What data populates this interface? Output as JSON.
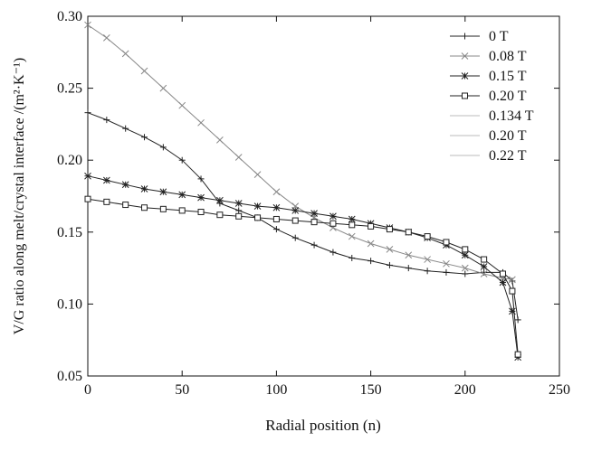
{
  "chart_data": {
    "type": "line",
    "xlabel": "Radial position (n)",
    "ylabel": "V/G ratio along melt/crystal interface /(m²·K⁻¹)",
    "xlim": [
      0,
      250
    ],
    "ylim": [
      0.05,
      0.3
    ],
    "x_ticks": [
      "0",
      "50",
      "100",
      "150",
      "200",
      "250"
    ],
    "y_ticks": [
      "0.05",
      "0.10",
      "0.15",
      "0.20",
      "0.25",
      "0.30"
    ],
    "grid": false,
    "legend_position": "top-right",
    "series": [
      {
        "name": "0 T",
        "marker": "plus",
        "color": "#222222",
        "x": [
          0,
          10,
          20,
          30,
          40,
          50,
          60,
          70,
          80,
          90,
          100,
          110,
          120,
          130,
          140,
          150,
          160,
          170,
          180,
          190,
          200,
          210,
          220,
          225,
          228
        ],
        "y": [
          0.233,
          0.228,
          0.222,
          0.216,
          0.209,
          0.2,
          0.187,
          0.17,
          0.165,
          0.16,
          0.152,
          0.146,
          0.141,
          0.136,
          0.132,
          0.13,
          0.127,
          0.125,
          0.123,
          0.122,
          0.121,
          0.122,
          0.122,
          0.116,
          0.089
        ]
      },
      {
        "name": "0.08 T",
        "marker": "cross",
        "color": "#888888",
        "x": [
          0,
          10,
          20,
          30,
          40,
          50,
          60,
          70,
          80,
          90,
          100,
          110,
          120,
          130,
          140,
          150,
          160,
          170,
          180,
          190,
          200,
          210,
          220,
          225
        ],
        "y": [
          0.294,
          0.285,
          0.274,
          0.262,
          0.25,
          0.238,
          0.226,
          0.214,
          0.202,
          0.19,
          0.178,
          0.168,
          0.16,
          0.153,
          0.147,
          0.142,
          0.138,
          0.134,
          0.131,
          0.128,
          0.125,
          0.121,
          0.118,
          0.117
        ]
      },
      {
        "name": "0.15 T",
        "marker": "asterisk",
        "color": "#222222",
        "x": [
          0,
          10,
          20,
          30,
          40,
          50,
          60,
          70,
          80,
          90,
          100,
          110,
          120,
          130,
          140,
          150,
          160,
          170,
          180,
          190,
          200,
          210,
          220,
          225,
          228
        ],
        "y": [
          0.189,
          0.186,
          0.183,
          0.18,
          0.178,
          0.176,
          0.174,
          0.172,
          0.17,
          0.168,
          0.167,
          0.165,
          0.163,
          0.161,
          0.159,
          0.156,
          0.153,
          0.15,
          0.146,
          0.141,
          0.134,
          0.126,
          0.115,
          0.095,
          0.063
        ]
      },
      {
        "name": "0.20 T",
        "marker": "square",
        "color": "#222222",
        "x": [
          0,
          10,
          20,
          30,
          40,
          50,
          60,
          70,
          80,
          90,
          100,
          110,
          120,
          130,
          140,
          150,
          160,
          170,
          180,
          190,
          200,
          210,
          220,
          225,
          228
        ],
        "y": [
          0.173,
          0.171,
          0.169,
          0.167,
          0.166,
          0.165,
          0.164,
          0.162,
          0.161,
          0.16,
          0.159,
          0.158,
          0.157,
          0.156,
          0.155,
          0.154,
          0.152,
          0.15,
          0.147,
          0.143,
          0.138,
          0.131,
          0.121,
          0.109,
          0.065
        ]
      },
      {
        "name": "0.134 T",
        "marker": "none",
        "color": "#bbbbbb",
        "x": [],
        "y": []
      },
      {
        "name": "0.20 T",
        "marker": "none",
        "color": "#bbbbbb",
        "x": [],
        "y": []
      },
      {
        "name": "0.22 T",
        "marker": "none",
        "color": "#bbbbbb",
        "x": [],
        "y": []
      }
    ]
  }
}
